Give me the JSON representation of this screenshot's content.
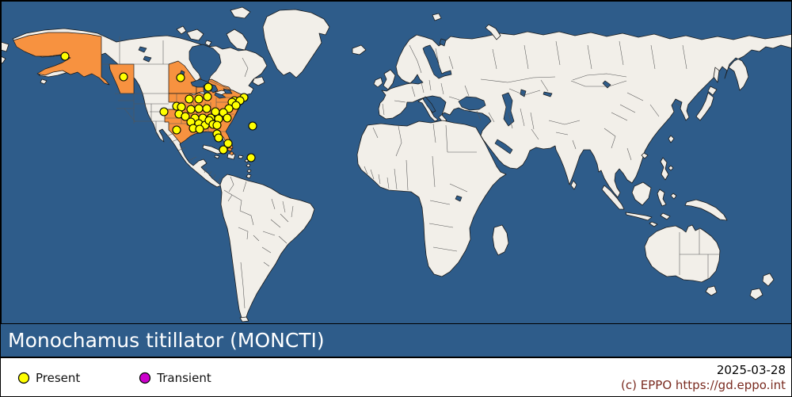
{
  "title": "Monochamus titillator (MONCTI)",
  "legend": {
    "items": [
      {
        "label": "Present",
        "color": "#ffff00"
      },
      {
        "label": "Transient",
        "color": "#cc00cc"
      }
    ]
  },
  "footer": {
    "date": "2025-03-28",
    "copyright": "(c) EPPO https://gd.eppo.int"
  },
  "colors": {
    "ocean": "#2e5c8a",
    "land": "#f2efe9",
    "highlight": "#f79240",
    "coast": "#1b1b1b",
    "admin_border": "#555555",
    "present": "#ffff00",
    "transient": "#cc00cc",
    "dot_outline": "#000000",
    "copyright_text": "#7a2b20"
  },
  "map_points": {
    "present": [
      [
        81,
        70
      ],
      [
        155,
        96
      ],
      [
        227,
        97
      ],
      [
        262,
        109
      ],
      [
        238,
        124
      ],
      [
        250,
        124
      ],
      [
        261,
        121
      ],
      [
        295,
        126
      ],
      [
        307,
        122
      ],
      [
        292,
        128
      ],
      [
        302,
        126
      ],
      [
        297,
        132
      ],
      [
        288,
        136
      ],
      [
        206,
        140
      ],
      [
        222,
        133
      ],
      [
        228,
        134
      ],
      [
        240,
        137
      ],
      [
        250,
        136
      ],
      [
        260,
        136
      ],
      [
        271,
        140
      ],
      [
        281,
        141
      ],
      [
        225,
        143
      ],
      [
        233,
        146
      ],
      [
        245,
        148
      ],
      [
        255,
        148
      ],
      [
        265,
        148
      ],
      [
        275,
        149
      ],
      [
        286,
        148
      ],
      [
        240,
        153
      ],
      [
        250,
        155
      ],
      [
        258,
        157
      ],
      [
        263,
        151
      ],
      [
        268,
        156
      ],
      [
        273,
        157
      ],
      [
        222,
        163
      ],
      [
        243,
        161
      ],
      [
        251,
        162
      ],
      [
        273,
        168
      ],
      [
        275,
        173
      ],
      [
        287,
        180
      ],
      [
        281,
        188
      ],
      [
        318,
        158
      ],
      [
        316,
        198
      ]
    ],
    "transient": []
  }
}
